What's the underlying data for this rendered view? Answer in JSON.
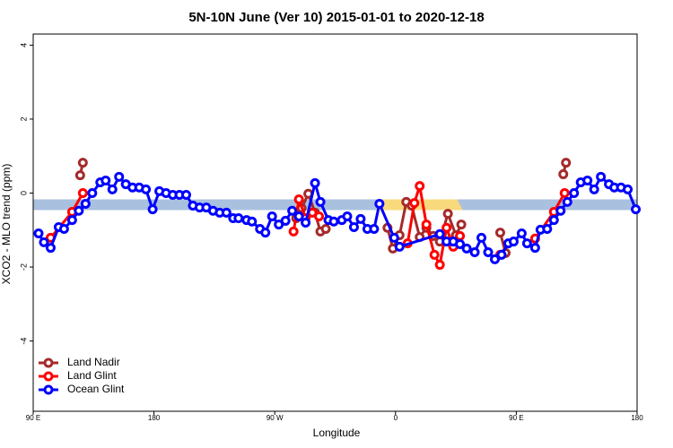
{
  "chart_data": {
    "type": "line",
    "title": "5N-10N June (Ver 10)   2015-01-01 to 2020-12-18",
    "x_label": "Longitude",
    "y_label": "XCO2 - MLO trend (ppm)",
    "xlim": [
      90,
      540
    ],
    "ylim": [
      -5.9,
      4.3
    ],
    "xticks": [
      {
        "value": 90,
        "label": "90 E"
      },
      {
        "value": 180,
        "label": "180"
      },
      {
        "value": 270,
        "label": "90 W"
      },
      {
        "value": 360,
        "label": "0"
      },
      {
        "value": 450,
        "label": "90 E"
      },
      {
        "value": 540,
        "label": "180"
      }
    ],
    "yticks": [
      -4,
      -2,
      0,
      2,
      4
    ],
    "band": {
      "ylim": [
        -0.46,
        -0.17
      ],
      "color": "#a9c0df",
      "highlight_color": "#f8d97c",
      "highlights": [
        [
          284,
          293
        ],
        [
          346,
          410
        ]
      ]
    },
    "legend": "bottom-left",
    "series": [
      {
        "name": "Land Nadir",
        "color": "#a52a2a",
        "x": [
          125,
          127,
          200,
          286,
          290,
          295,
          300,
          304,
          308,
          330,
          354,
          358,
          363,
          368,
          372,
          378,
          383,
          388,
          393,
          399,
          405,
          409,
          420,
          438,
          442,
          460,
          485,
          487
        ],
        "values": [
          0.48,
          0.82,
          null,
          -0.68,
          -0.41,
          -0.02,
          -0.53,
          -1.04,
          -0.97,
          null,
          -0.94,
          -1.5,
          -1.14,
          -0.24,
          -0.34,
          -1.19,
          -0.94,
          -1.16,
          -1.31,
          -0.56,
          -1.14,
          -0.85,
          null,
          -1.07,
          -1.62,
          null,
          0.51,
          0.82
        ]
      },
      {
        "name": "Land Glint",
        "color": "#ff0000",
        "x": [
          103,
          119,
          127,
          200,
          284,
          288,
          293,
          298,
          303,
          330,
          369,
          374,
          378,
          383,
          389,
          393,
          398,
          403,
          408,
          420,
          438,
          450,
          464,
          478,
          486
        ],
        "values": [
          -1.21,
          -0.51,
          0,
          null,
          -1.04,
          -0.17,
          -0.68,
          -0.53,
          -0.63,
          null,
          -1.36,
          -0.27,
          0.19,
          -0.85,
          -1.67,
          -1.94,
          -0.94,
          -1.45,
          -1.16,
          null,
          -1.67,
          null,
          -1.23,
          -0.51,
          0
        ]
      },
      {
        "name": "Ocean Glint",
        "color": "#0000ff",
        "x": [
          94,
          98,
          103,
          109,
          113,
          119,
          124,
          129,
          134,
          140,
          144,
          149,
          154,
          159,
          164,
          169,
          174,
          179,
          184,
          189,
          194,
          199,
          204,
          209,
          214,
          219,
          224,
          229,
          234,
          239,
          243,
          249,
          253,
          259,
          263,
          268,
          273,
          278,
          283,
          288,
          293,
          300,
          304,
          310,
          314,
          320,
          324,
          329,
          334,
          339,
          344,
          348,
          359,
          363,
          393,
          398,
          403,
          408,
          413,
          419,
          424,
          429,
          434,
          439,
          444,
          448,
          454,
          458,
          464,
          468,
          473,
          478,
          483,
          488,
          493,
          498,
          503,
          508,
          513,
          519,
          523,
          528,
          533,
          539
        ],
        "values": [
          -1.09,
          -1.33,
          -1.48,
          -0.92,
          -0.97,
          -0.73,
          -0.48,
          -0.29,
          0,
          0.29,
          0.34,
          0.1,
          0.44,
          0.24,
          0.15,
          0.15,
          0.1,
          -0.44,
          0.05,
          0,
          -0.05,
          -0.05,
          -0.05,
          -0.34,
          -0.39,
          -0.39,
          -0.48,
          -0.53,
          -0.53,
          -0.68,
          -0.68,
          -0.73,
          -0.77,
          -0.97,
          -1.07,
          -0.63,
          -0.85,
          -0.75,
          -0.48,
          -0.63,
          -0.8,
          0.27,
          -0.24,
          -0.73,
          -0.77,
          -0.73,
          -0.63,
          -0.92,
          -0.7,
          -0.97,
          -0.97,
          -0.29,
          -1.21,
          -1.45,
          -1.11,
          -1.31,
          -1.31,
          -1.38,
          -1.5,
          -1.6,
          -1.21,
          -1.6,
          -1.79,
          -1.67,
          -1.36,
          -1.31,
          -1.09,
          -1.36,
          -1.48,
          -0.99,
          -0.97,
          -0.73,
          -0.48,
          -0.24,
          0,
          0.29,
          0.34,
          0.1,
          0.44,
          0.24,
          0.15,
          0.15,
          0.1,
          -0.44
        ]
      }
    ]
  }
}
